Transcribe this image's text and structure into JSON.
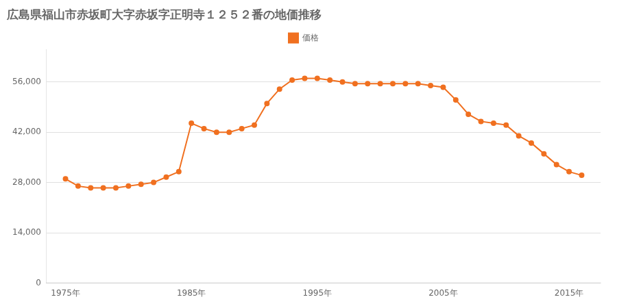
{
  "chart_data": {
    "type": "line",
    "title": "広島県福山市赤坂町大字赤坂字正明寺１２５２番の地価推移",
    "x": [
      1975,
      1976,
      1977,
      1978,
      1979,
      1980,
      1981,
      1982,
      1983,
      1984,
      1985,
      1986,
      1987,
      1988,
      1989,
      1990,
      1991,
      1992,
      1993,
      1994,
      1995,
      1996,
      1997,
      1998,
      1999,
      2000,
      2001,
      2002,
      2003,
      2004,
      2005,
      2006,
      2007,
      2008,
      2009,
      2010,
      2011,
      2012,
      2013,
      2014,
      2015,
      2016
    ],
    "series": [
      {
        "name": "価格",
        "color": "#f07020",
        "marker": "circle",
        "values": [
          29000,
          27000,
          26500,
          26500,
          26500,
          27000,
          27500,
          28000,
          29500,
          31000,
          44500,
          43000,
          42000,
          42000,
          43000,
          44000,
          50000,
          54000,
          56500,
          57000,
          57000,
          56500,
          56000,
          55500,
          55500,
          55500,
          55500,
          55500,
          55500,
          55000,
          54500,
          51000,
          47000,
          45000,
          44500,
          44000,
          41000,
          39000,
          36000,
          33000,
          31000,
          30000
        ]
      }
    ],
    "xlim": [
      1973.5,
      2017.5
    ],
    "xticks": [
      {
        "value": 1975,
        "label": "1975年"
      },
      {
        "value": 1985,
        "label": "1985年"
      },
      {
        "value": 1995,
        "label": "1995年"
      },
      {
        "value": 2005,
        "label": "2005年"
      },
      {
        "value": 2015,
        "label": "2015年"
      }
    ],
    "ylim": [
      0,
      65000
    ],
    "yticks": [
      0,
      {
        "value": 14000,
        "label": "14,000"
      },
      {
        "value": 28000,
        "label": "28,000"
      },
      {
        "value": 42000,
        "label": "42,000"
      },
      {
        "value": 56000,
        "label": "56,000"
      }
    ],
    "grid": "y",
    "legend": "top"
  }
}
